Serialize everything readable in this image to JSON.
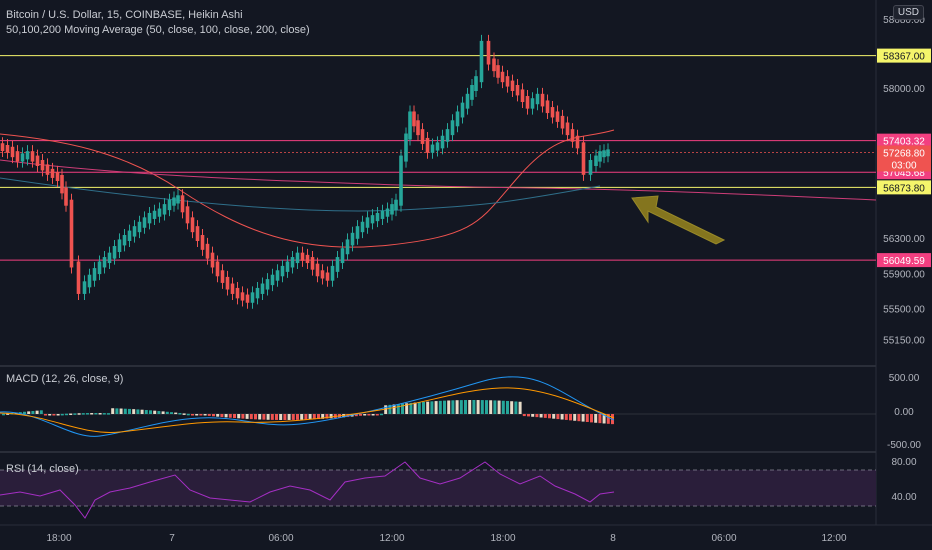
{
  "header": {
    "title": "Bitcoin / U.S. Dollar, 15, COINBASE, Heikin Ashi",
    "indicator": "50,100,200 Moving Average (50, close, 100, close, 200, close)",
    "currency": "USD"
  },
  "price_axis": {
    "ticks": [
      "58000.00",
      "56300.00",
      "55900.00",
      "55500.00",
      "55150.00"
    ],
    "top_partial": "58680.00"
  },
  "levels": [
    {
      "label": "58367.00",
      "price": 58367,
      "kind": "yellow"
    },
    {
      "label": "57403.32",
      "price": 57403.32,
      "kind": "pink"
    },
    {
      "label": "57045.68",
      "price": 57045.68,
      "kind": "pink"
    },
    {
      "label": "56873.80",
      "price": 56873.8,
      "kind": "yellow"
    },
    {
      "label": "56049.59",
      "price": 56049.59,
      "kind": "pink"
    }
  ],
  "current_price": {
    "label": "57268.80",
    "countdown": "03:00",
    "price": 57268.8
  },
  "macd": {
    "title": "MACD (12, 26, close, 9)",
    "ticks": [
      "500.00",
      "0.00",
      "-500.00"
    ]
  },
  "rsi": {
    "title": "RSI (14, close)",
    "ticks": [
      "80.00",
      "40.00"
    ],
    "upper": 80,
    "lower": 30
  },
  "time_axis": [
    "18:00",
    "7",
    "06:00",
    "12:00",
    "18:00",
    "8",
    "06:00",
    "12:00"
  ],
  "colors": {
    "up": "#26a69a",
    "down": "#ef5350",
    "yellow_line": "#f5f56b",
    "pink_line": "#f23f80",
    "ma50": "#ef5350",
    "ma100": "#ce3d78",
    "ma200": "#2f6f8a",
    "arrow": "#8b7b1e",
    "rsi": "#a52fc4"
  }
}
